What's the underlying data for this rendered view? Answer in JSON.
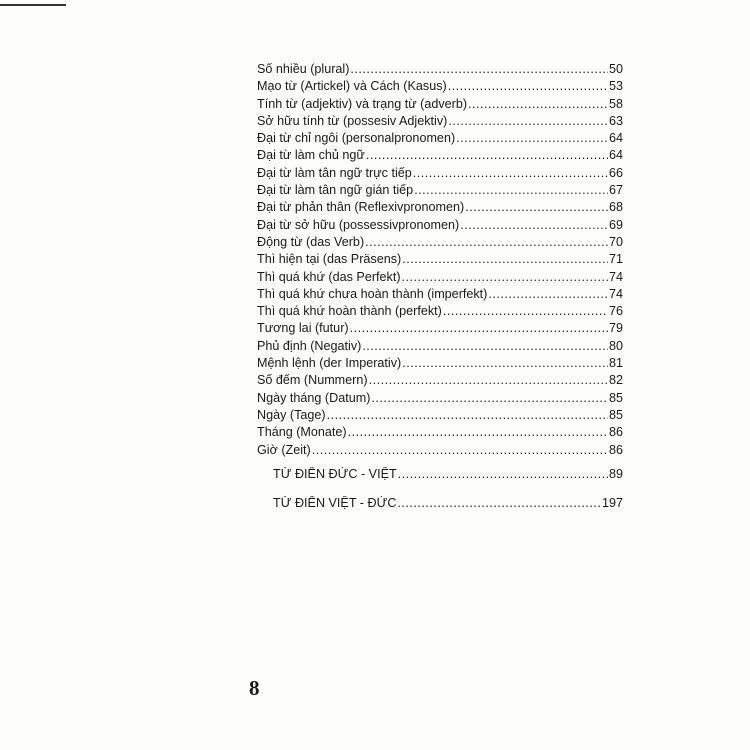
{
  "entries": [
    {
      "title": "Số nhiều (plural)",
      "page": "50"
    },
    {
      "title": "Mạo từ (Artickel) và Cách (Kasus)",
      "page": "53"
    },
    {
      "title": "Tính từ (adjektiv) và trạng từ (adverb)",
      "page": "58"
    },
    {
      "title": "Sở hữu tính từ (possesiv Adjektiv)",
      "page": "63"
    },
    {
      "title": "Đại từ chỉ ngôi (personalpronomen)",
      "page": "64"
    },
    {
      "title": "Đại từ làm chủ ngữ",
      "page": "64"
    },
    {
      "title": "Đại từ làm tân ngữ trực tiếp",
      "page": "66"
    },
    {
      "title": "Đại từ làm tân ngữ gián tiếp",
      "page": "67"
    },
    {
      "title": "Đại từ phản thân (Reflexivpronomen)",
      "page": "68"
    },
    {
      "title": "Đại từ sở hữu (possessivpronomen)",
      "page": "69"
    },
    {
      "title": "Động từ (das Verb)",
      "page": "70"
    },
    {
      "title": "Thì hiện tại (das Präsens)",
      "page": "71"
    },
    {
      "title": "Thì quá khứ (das Perfekt)",
      "page": "74"
    },
    {
      "title": "Thì quá khứ chưa hoàn thành (imperfekt)",
      "page": "74"
    },
    {
      "title": "Thì quá khứ hoàn thành (perfekt)",
      "page": "76"
    },
    {
      "title": "Tương lai (futur)",
      "page": "79"
    },
    {
      "title": "Phủ định (Negativ)",
      "page": "80"
    },
    {
      "title": "Mệnh lệnh (der Imperativ)",
      "page": "81"
    },
    {
      "title": "Số đếm (Nummern)",
      "page": "82"
    },
    {
      "title": "Ngày tháng (Datum)",
      "page": "85"
    },
    {
      "title": "Ngày (Tage)",
      "page": "85"
    },
    {
      "title": "Tháng (Monate)",
      "page": "86"
    },
    {
      "title": "Giờ (Zeit)",
      "page": "86"
    }
  ],
  "major_entries": [
    {
      "title": "TỪ ĐIỂN ĐỨC - VIỆT",
      "page": "89"
    },
    {
      "title": "TỪ ĐIỂN VIỆT - ĐỨC",
      "page": "197"
    }
  ],
  "page_number": "8"
}
